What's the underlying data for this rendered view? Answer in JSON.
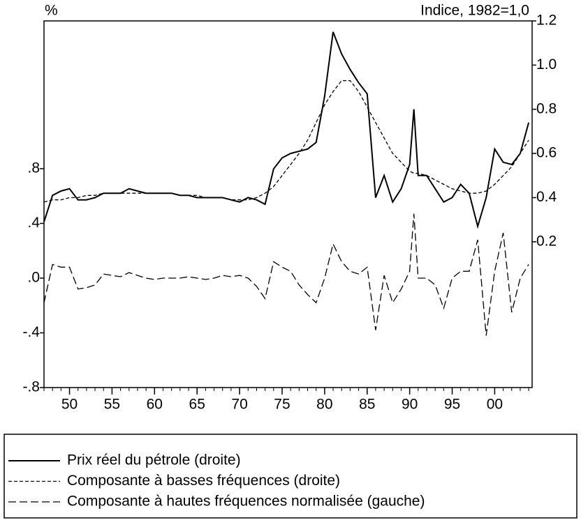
{
  "chart_data": {
    "type": "line",
    "ylabel": "%",
    "y2label": "Indice, 1982=1,0",
    "x": [
      1947,
      1948,
      1949,
      1950,
      1951,
      1952,
      1953,
      1954,
      1955,
      1956,
      1957,
      1958,
      1959,
      1960,
      1961,
      1962,
      1963,
      1964,
      1965,
      1966,
      1967,
      1968,
      1969,
      1970,
      1971,
      1972,
      1973,
      1974,
      1975,
      1976,
      1977,
      1978,
      1979,
      1980,
      1981,
      1982,
      1983,
      1984,
      1985,
      1986,
      1987,
      1988,
      1989,
      1990,
      1990.5,
      1991,
      1992,
      1993,
      1994,
      1995,
      1996,
      1997,
      1998,
      1999,
      2000,
      2001,
      2002,
      2003,
      2004
    ],
    "series": [
      {
        "name": "Prix réel du pétrole (droite)",
        "color": "#000000",
        "style": "solid",
        "axis": "y2",
        "values": [
          0.29,
          0.41,
          0.43,
          0.44,
          0.39,
          0.39,
          0.4,
          0.42,
          0.42,
          0.42,
          0.44,
          0.43,
          0.42,
          0.42,
          0.42,
          0.42,
          0.41,
          0.41,
          0.4,
          0.4,
          0.4,
          0.4,
          0.39,
          0.38,
          0.4,
          0.39,
          0.37,
          0.53,
          0.58,
          0.6,
          0.61,
          0.62,
          0.65,
          0.86,
          1.15,
          1.05,
          0.98,
          0.92,
          0.87,
          0.4,
          0.5,
          0.38,
          0.44,
          0.55,
          0.8,
          0.5,
          0.5,
          0.44,
          0.38,
          0.4,
          0.46,
          0.42,
          0.27,
          0.4,
          0.62,
          0.56,
          0.55,
          0.6,
          0.74
        ]
      },
      {
        "name": "Composante à basses fréquences (droite)",
        "color": "#000000",
        "style": "dashed",
        "axis": "y2",
        "values": [
          0.38,
          0.39,
          0.39,
          0.4,
          0.4,
          0.41,
          0.41,
          0.42,
          0.42,
          0.42,
          0.42,
          0.42,
          0.42,
          0.42,
          0.42,
          0.42,
          0.41,
          0.41,
          0.41,
          0.4,
          0.4,
          0.4,
          0.39,
          0.39,
          0.39,
          0.4,
          0.42,
          0.45,
          0.5,
          0.55,
          0.6,
          0.66,
          0.74,
          0.82,
          0.88,
          0.93,
          0.93,
          0.88,
          0.81,
          0.74,
          0.67,
          0.6,
          0.56,
          0.52,
          0.51,
          0.51,
          0.5,
          0.48,
          0.46,
          0.44,
          0.43,
          0.42,
          0.42,
          0.43,
          0.46,
          0.5,
          0.54,
          0.6,
          0.66
        ]
      },
      {
        "name": "Composante à hautes fréquences normalisée (gauche)",
        "color": "#000000",
        "style": "longdash",
        "axis": "y",
        "values": [
          -0.18,
          0.1,
          0.08,
          0.08,
          -0.08,
          -0.07,
          -0.05,
          0.03,
          0.02,
          0.01,
          0.04,
          0.02,
          0.0,
          -0.01,
          0.0,
          0.0,
          0.0,
          0.01,
          0.0,
          -0.01,
          0.0,
          0.02,
          0.01,
          0.02,
          0.0,
          -0.06,
          -0.15,
          0.12,
          0.08,
          0.05,
          -0.05,
          -0.12,
          -0.18,
          0.0,
          0.25,
          0.12,
          0.05,
          0.03,
          0.08,
          -0.38,
          0.02,
          -0.18,
          -0.08,
          0.05,
          0.47,
          0.0,
          0.0,
          -0.05,
          -0.22,
          0.0,
          0.05,
          0.05,
          0.28,
          -0.42,
          0.05,
          0.33,
          -0.25,
          0.0,
          0.1
        ]
      }
    ],
    "xlim": [
      1947,
      2004.4
    ],
    "xticks": [
      {
        "value": 1950,
        "label": "50"
      },
      {
        "value": 1955,
        "label": "55"
      },
      {
        "value": 1960,
        "label": "60"
      },
      {
        "value": 1965,
        "label": "65"
      },
      {
        "value": 1970,
        "label": "70"
      },
      {
        "value": 1975,
        "label": "75"
      },
      {
        "value": 1980,
        "label": "80"
      },
      {
        "value": 1985,
        "label": "85"
      },
      {
        "value": 1990,
        "label": "90"
      },
      {
        "value": 1995,
        "label": "95"
      },
      {
        "value": 2000,
        "label": "00"
      }
    ],
    "ylim": [
      -0.8,
      1.88
    ],
    "yticks": [
      {
        "value": -0.8,
        "label": "-.8"
      },
      {
        "value": -0.4,
        "label": "-.4"
      },
      {
        "value": 0,
        "label": ".0"
      },
      {
        "value": 0.4,
        "label": ".4"
      },
      {
        "value": 0.8,
        "label": ".8"
      }
    ],
    "y2lim": [
      -0.46,
      1.2
    ],
    "y2ticks": [
      0.2,
      0.4,
      0.6,
      0.8,
      {
        "value": 1.0,
        "label": "1.0"
      },
      1.2
    ]
  }
}
